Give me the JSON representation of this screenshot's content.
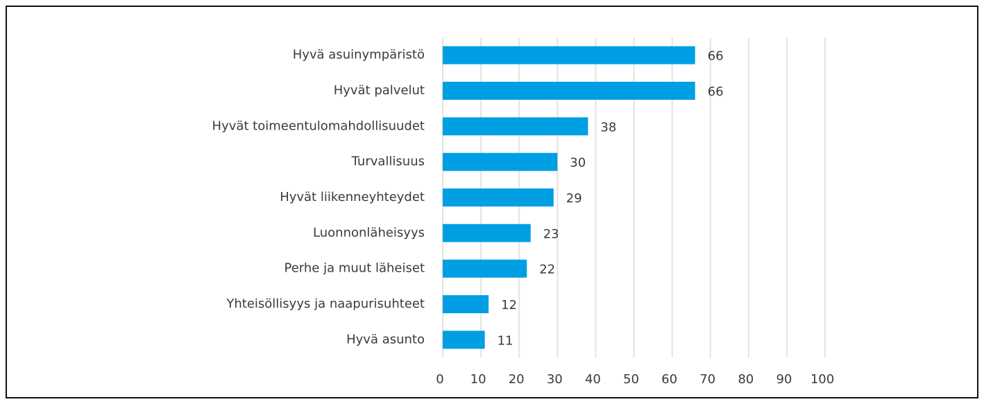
{
  "chart_data": {
    "type": "barh",
    "categories": [
      "Hyvä asuinympäristö",
      "Hyvät palvelut",
      "Hyvät toimeentulomahdollisuudet",
      "Turvallisuus",
      "Hyvät liikenneyhteydet",
      "Luonnonläheisyys",
      "Perhe ja muut läheiset",
      "Yhteisöllisyys ja naapurisuhteet",
      "Hyvä asunto"
    ],
    "values": [
      66,
      66,
      38,
      30,
      29,
      23,
      22,
      12,
      11
    ],
    "color": "#009fe3",
    "xlim": [
      0,
      100
    ],
    "xticks": [
      0,
      10,
      20,
      30,
      40,
      50,
      60,
      70,
      80,
      90,
      100
    ],
    "grid": true
  }
}
